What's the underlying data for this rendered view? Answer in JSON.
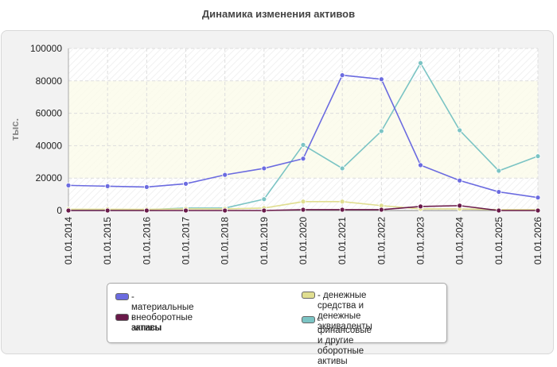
{
  "chart_data": {
    "type": "line",
    "title": "Динамика изменения активов",
    "ylabel": "тыс.",
    "xlabel": "",
    "ylim": [
      0,
      100000
    ],
    "y_ticks": [
      "0",
      "20000",
      "40000",
      "60000",
      "80000",
      "100000"
    ],
    "grid": true,
    "legend_position": "bottom",
    "categories": [
      "01.01.2014",
      "01.01.2015",
      "01.01.2016",
      "01.01.2017",
      "01.01.2018",
      "01.01.2019",
      "01.01.2020",
      "01.01.2021",
      "01.01.2022",
      "01.01.2023",
      "01.01.2024",
      "01.01.2025",
      "01.01.2026"
    ],
    "series": [
      {
        "name": "- материальные внеоборотные\nактивы",
        "color": "#6b6be0",
        "values": [
          15500,
          15000,
          14500,
          16500,
          22000,
          26000,
          32000,
          83500,
          81000,
          28000,
          18500,
          11500,
          8000
        ]
      },
      {
        "name": "- запасы",
        "color": "#6a1a4a",
        "values": [
          0,
          0,
          0,
          0,
          0,
          0,
          500,
          500,
          500,
          2500,
          3000,
          0,
          0
        ]
      },
      {
        "name": "- денежные средства и\nденежные эквиваленты",
        "color": "#e0de90",
        "values": [
          800,
          800,
          700,
          1000,
          1000,
          1500,
          5500,
          5500,
          3000,
          1000,
          1000,
          500,
          500
        ]
      },
      {
        "name": "- финансовые и другие\nоборотные активы",
        "color": "#7bc4c4",
        "values": [
          500,
          500,
          500,
          1500,
          1500,
          7000,
          40500,
          26000,
          49000,
          91000,
          49500,
          24500,
          33500
        ]
      }
    ]
  }
}
